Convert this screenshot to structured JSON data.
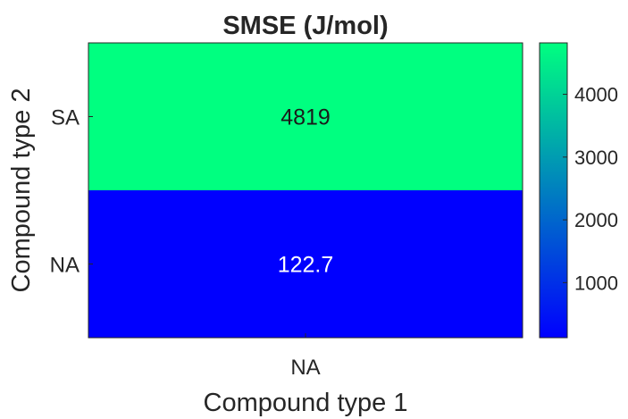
{
  "chart_data": {
    "type": "heatmap",
    "title": "SMSE (J/mol)",
    "xlabel": "Compound type 1",
    "ylabel": "Compound type 2",
    "x_categories": [
      "NA"
    ],
    "y_categories": [
      "SA",
      "NA"
    ],
    "values": [
      [
        4819
      ],
      [
        122.7
      ]
    ],
    "value_labels": [
      [
        "4819"
      ],
      [
        "122.7"
      ]
    ],
    "colorbar": {
      "colormap": "winter",
      "range": [
        122.7,
        4819
      ],
      "ticks": [
        1000,
        2000,
        3000,
        4000
      ],
      "tick_labels": [
        "1000",
        "2000",
        "3000",
        "4000"
      ]
    },
    "colors": {
      "low": "#0000ff",
      "high": "#00ff80",
      "text_on_light": "#1a1a1a",
      "text_on_dark": "#ffffff",
      "axis": "#262626"
    },
    "grid": false
  }
}
